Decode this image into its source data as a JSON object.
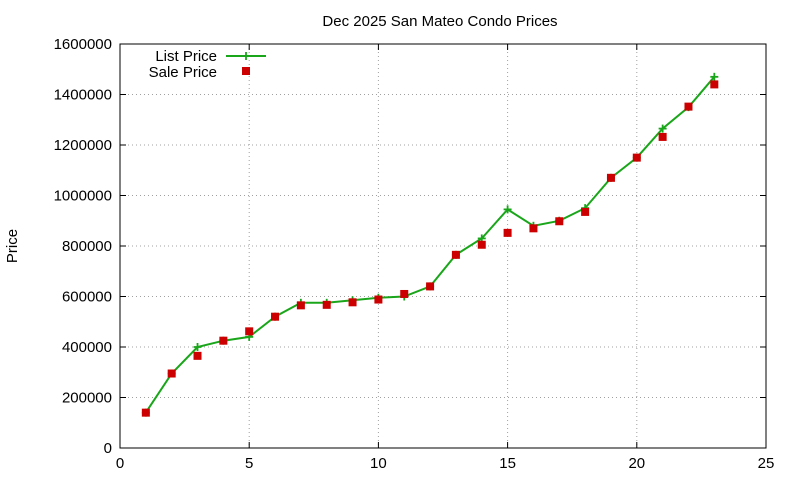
{
  "chart_data": {
    "type": "line",
    "title": "Dec 2025 San Mateo Condo Prices",
    "xlabel": "",
    "ylabel": "Price",
    "xlim": [
      0,
      25
    ],
    "ylim": [
      0,
      1600000
    ],
    "xticks": [
      0,
      5,
      10,
      15,
      20,
      25
    ],
    "yticks": [
      0,
      200000,
      400000,
      600000,
      800000,
      1000000,
      1200000,
      1400000,
      1600000
    ],
    "grid": true,
    "legend_position": "top-left",
    "x": [
      1,
      2,
      3,
      4,
      5,
      6,
      7,
      8,
      9,
      10,
      11,
      12,
      13,
      14,
      15,
      16,
      17,
      18,
      19,
      20,
      21,
      22,
      23
    ],
    "series": [
      {
        "name": "List Price",
        "style": "line+cross",
        "color": "#1aa61a",
        "values": [
          140000,
          295000,
          400000,
          425000,
          440000,
          520000,
          575000,
          575000,
          585000,
          595000,
          600000,
          640000,
          765000,
          830000,
          945000,
          880000,
          900000,
          950000,
          1070000,
          1150000,
          1265000,
          1350000,
          1470000
        ]
      },
      {
        "name": "Sale Price",
        "style": "square",
        "color": "#cc0000",
        "values": [
          140000,
          295000,
          365000,
          425000,
          462000,
          520000,
          565000,
          567000,
          577000,
          588000,
          610000,
          640000,
          765000,
          805000,
          852000,
          870000,
          898000,
          935000,
          1070000,
          1150000,
          1232000,
          1352000,
          1440000
        ]
      }
    ]
  }
}
